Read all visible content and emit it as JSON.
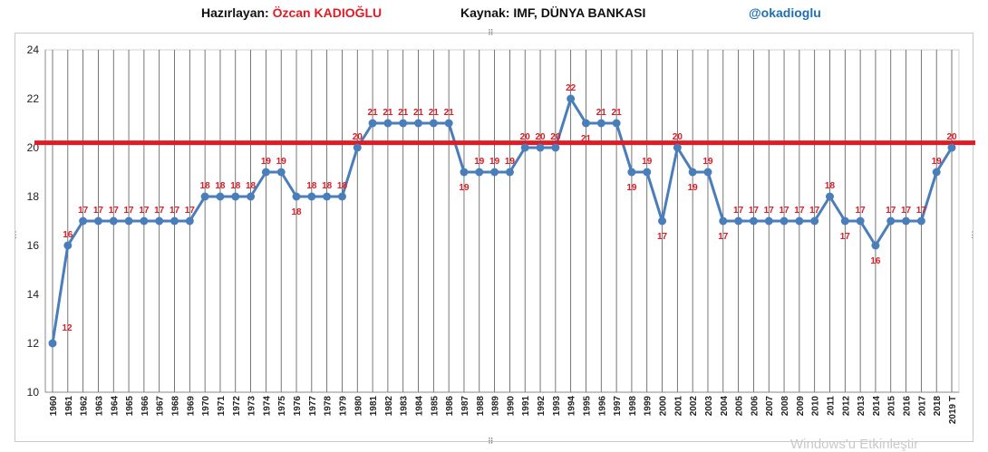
{
  "header": {
    "author_label": "Hazırlayan:",
    "author_name": "Özcan KADIOĞLU",
    "source": "Kaynak: IMF, DÜNYA BANKASI",
    "handle": "@okadioglu"
  },
  "watermark": "Windows'u Etkinleştir",
  "colors": {
    "line": "#4a7ebb",
    "point": "#4a7ebb",
    "label": "#e01b24",
    "reference": "#e01b24",
    "grid": "#555555"
  },
  "chart_data": {
    "type": "line",
    "title": "",
    "xlabel": "",
    "ylabel": "",
    "ylim": [
      10,
      24
    ],
    "yticks": [
      10,
      12,
      14,
      16,
      18,
      20,
      22,
      24
    ],
    "reference_line": 20.2,
    "grid": {
      "vertical": true,
      "horizontal": false
    },
    "categories": [
      "1960",
      "1961",
      "1962",
      "1963",
      "1964",
      "1965",
      "1966",
      "1967",
      "1968",
      "1969",
      "1970",
      "1971",
      "1972",
      "1973",
      "1974",
      "1975",
      "1976",
      "1977",
      "1978",
      "1979",
      "1980",
      "1981",
      "1982",
      "1983",
      "1984",
      "1985",
      "1986",
      "1987",
      "1988",
      "1989",
      "1990",
      "1991",
      "1992",
      "1993",
      "1994",
      "1995",
      "1996",
      "1997",
      "1998",
      "1999",
      "2000",
      "2001",
      "2002",
      "2003",
      "2004",
      "2005",
      "2006",
      "2007",
      "2008",
      "2009",
      "2010",
      "2011",
      "2012",
      "2013",
      "2014",
      "2015",
      "2016",
      "2017",
      "2018",
      "2019 T"
    ],
    "values": [
      12,
      16,
      17,
      17,
      17,
      17,
      17,
      17,
      17,
      17,
      18,
      18,
      18,
      18,
      19,
      19,
      18,
      18,
      18,
      18,
      20,
      21,
      21,
      21,
      21,
      21,
      21,
      19,
      19,
      19,
      19,
      20,
      20,
      20,
      22,
      21,
      21,
      21,
      19,
      19,
      17,
      20,
      19,
      19,
      17,
      17,
      17,
      17,
      17,
      17,
      17,
      18,
      17,
      17,
      16,
      17,
      17,
      17,
      19,
      20
    ]
  }
}
